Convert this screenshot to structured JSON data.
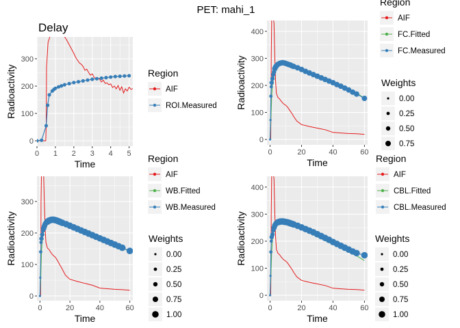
{
  "title": "PET:  mahi_1",
  "colors": {
    "aif": "#E41A1C",
    "fitted": "#4DAF4A",
    "measured": "#377EB8",
    "panel_bg": "#EBEBEB",
    "grid": "#ffffff",
    "legend_key_bg": "#F2F2F2"
  },
  "chart_data": [
    {
      "id": "delay",
      "type": "line",
      "title": "Delay",
      "xlabel": "Time",
      "ylabel": "Radioactivity",
      "xlim": [
        0,
        5.2
      ],
      "ylim": [
        -20,
        380
      ],
      "xticks": [
        0,
        1,
        2,
        3,
        4,
        5
      ],
      "yticks": [
        0,
        100,
        200,
        300
      ],
      "legend_title": "Region",
      "legend": [
        "AIF",
        "ROI.Measured"
      ],
      "weights": null,
      "series": [
        {
          "name": "AIF",
          "color": "aif",
          "kind": "line",
          "x": [
            0,
            0.48,
            0.5,
            0.52,
            0.6,
            0.7,
            0.72,
            1.4,
            1.6,
            1.8,
            2.0,
            2.1,
            2.2,
            2.3,
            2.4,
            2.5,
            2.6,
            2.7,
            2.8,
            2.9,
            3.0,
            3.1,
            3.2,
            3.3,
            3.4,
            3.5,
            3.6,
            3.7,
            3.8,
            3.9,
            4.0,
            4.1,
            4.2,
            4.3,
            4.4,
            4.5,
            4.6,
            4.7,
            4.8,
            4.9,
            5.0,
            5.1,
            5.2
          ],
          "y": [
            0,
            0,
            60,
            270,
            360,
            380,
            390,
            390,
            370,
            345,
            320,
            305,
            295,
            285,
            280,
            272,
            258,
            262,
            250,
            240,
            245,
            232,
            228,
            230,
            225,
            215,
            222,
            210,
            212,
            205,
            208,
            195,
            200,
            190,
            202,
            185,
            198,
            175,
            190,
            182,
            196,
            188,
            191
          ]
        },
        {
          "name": "ROI.Measured",
          "color": "measured",
          "kind": "points-line",
          "x": [
            0,
            0.25,
            0.5,
            0.58,
            0.67,
            0.83,
            0.92,
            1.0,
            1.17,
            1.33,
            1.5,
            1.75,
            2.0,
            2.25,
            2.5,
            2.75,
            3.0,
            3.25,
            3.5,
            3.75,
            4.0,
            4.25,
            4.5,
            4.75,
            5.0
          ],
          "y": [
            0,
            2,
            55,
            130,
            168,
            182,
            188,
            192,
            197,
            201,
            205,
            209,
            213,
            216,
            219,
            222,
            225,
            227,
            229,
            231,
            233,
            235,
            236,
            237,
            238
          ]
        }
      ]
    },
    {
      "id": "fc",
      "type": "line",
      "title": "",
      "xlabel": "Time",
      "ylabel": "Radioactivity",
      "xlim": [
        -2,
        62
      ],
      "ylim": [
        -20,
        440
      ],
      "xticks": [
        0,
        20,
        40,
        60
      ],
      "yticks": [
        0,
        100,
        200,
        300,
        400
      ],
      "legend_title": "Region",
      "legend": [
        "AIF",
        "FC.Fitted",
        "FC.Measured"
      ],
      "weights": {
        "title": "Weights",
        "values": [
          "0.00",
          "0.25",
          "0.50",
          "0.75"
        ]
      },
      "series": [
        {
          "name": "AIF",
          "color": "aif",
          "kind": "line",
          "x": [
            0,
            0.4,
            0.5,
            0.7,
            1,
            1.5,
            2,
            2.5,
            3,
            3.5,
            4,
            5,
            6,
            7,
            8,
            9,
            10,
            11,
            12,
            13,
            14,
            15,
            17,
            20,
            25,
            30,
            35,
            40,
            45,
            50,
            55,
            60
          ],
          "y": [
            0,
            0,
            60,
            300,
            450,
            450,
            450,
            430,
            300,
            215,
            170,
            155,
            150,
            142,
            135,
            130,
            126,
            120,
            112,
            103,
            95,
            85,
            68,
            55,
            48,
            42,
            36,
            26,
            24,
            22,
            21,
            19
          ]
        },
        {
          "name": "FC.Fitted",
          "color": "fitted",
          "kind": "line",
          "x": [
            0,
            0.5,
            1,
            1.5,
            2,
            3,
            4,
            5,
            6,
            7,
            8,
            10,
            12,
            15,
            20,
            25,
            30,
            35,
            40,
            45,
            50,
            55,
            60
          ],
          "y": [
            0,
            70,
            160,
            200,
            225,
            250,
            265,
            274,
            280,
            283,
            285,
            284,
            281,
            275,
            262,
            249,
            237,
            224,
            211,
            198,
            185,
            172,
            152
          ]
        },
        {
          "name": "FC.Measured",
          "color": "measured",
          "kind": "points-line",
          "x": [
            0,
            0.25,
            0.5,
            0.75,
            1,
            1.5,
            2,
            2.5,
            3,
            3.5,
            4,
            5,
            6,
            7,
            8,
            9,
            10,
            11,
            12,
            13,
            14,
            15,
            17.5,
            20,
            22.5,
            25,
            27.5,
            30,
            32.5,
            35,
            37.5,
            40,
            42.5,
            45,
            47.5,
            50,
            52.5,
            55,
            60
          ],
          "y": [
            0,
            72,
            160,
            195,
            210,
            225,
            240,
            250,
            262,
            268,
            272,
            278,
            281,
            283,
            284,
            283,
            281,
            279,
            277,
            275,
            272,
            270,
            265,
            259,
            252,
            246,
            240,
            234,
            228,
            222,
            216,
            210,
            203,
            197,
            190,
            183,
            175,
            168,
            152
          ],
          "w": [
            0,
            0,
            0.25,
            0.25,
            0.5,
            0.5,
            0.5,
            0.5,
            0.75,
            0.75,
            0.75,
            0.75,
            0.75,
            0.75,
            0.75,
            0.75,
            0.75,
            0.75,
            0.75,
            0.75,
            0.75,
            0.75,
            0.75,
            0.75,
            0.75,
            0.75,
            0.75,
            0.75,
            0.75,
            0.75,
            0.75,
            0.75,
            0.75,
            0.75,
            0.75,
            0.75,
            0.75,
            0.75,
            0.75
          ]
        }
      ]
    },
    {
      "id": "wb",
      "type": "line",
      "title": "",
      "xlabel": "Time",
      "ylabel": "Radioactivity",
      "xlim": [
        -2,
        62
      ],
      "ylim": [
        -15,
        380
      ],
      "xticks": [
        0,
        20,
        40,
        60
      ],
      "yticks": [
        0,
        100,
        200,
        300
      ],
      "legend_title": "Region",
      "legend": [
        "AIF",
        "WB.Fitted",
        "WB.Measured"
      ],
      "weights": {
        "title": "Weights",
        "values": [
          "0.00",
          "0.25",
          "0.50",
          "0.75",
          "1.00"
        ]
      },
      "series": [
        {
          "name": "AIF",
          "color": "aif",
          "kind": "line",
          "x": [
            0,
            0.4,
            0.5,
            0.7,
            1,
            2,
            2.5,
            3,
            3.5,
            4,
            5,
            6,
            7,
            8,
            9,
            10,
            11,
            12,
            13,
            14,
            15,
            17,
            20,
            25,
            30,
            35,
            40,
            45,
            50,
            55,
            60
          ],
          "y": [
            0,
            0,
            60,
            300,
            390,
            390,
            380,
            290,
            210,
            170,
            152,
            148,
            140,
            133,
            128,
            124,
            118,
            110,
            101,
            93,
            84,
            66,
            53,
            46,
            40,
            34,
            25,
            23,
            21,
            20,
            18
          ]
        },
        {
          "name": "WB.Fitted",
          "color": "fitted",
          "kind": "line",
          "x": [
            0,
            0.5,
            1,
            1.5,
            2,
            3,
            4,
            5,
            6,
            7,
            8,
            10,
            12,
            15,
            20,
            25,
            30,
            35,
            40,
            45,
            50,
            55,
            60
          ],
          "y": [
            0,
            55,
            140,
            175,
            195,
            215,
            228,
            235,
            240,
            242,
            243,
            242,
            240,
            235,
            225,
            214,
            204,
            194,
            184,
            174,
            164,
            154,
            140
          ]
        },
        {
          "name": "WB.Measured",
          "color": "measured",
          "kind": "points-line",
          "x": [
            0,
            0.25,
            0.5,
            0.75,
            1,
            1.5,
            2,
            2.5,
            3,
            3.5,
            4,
            5,
            6,
            7,
            8,
            9,
            10,
            11,
            12,
            13,
            14,
            15,
            17.5,
            20,
            22.5,
            25,
            27.5,
            30,
            32.5,
            35,
            37.5,
            40,
            42.5,
            45,
            47.5,
            50,
            52.5,
            55,
            60
          ],
          "y": [
            0,
            58,
            140,
            170,
            182,
            195,
            208,
            215,
            222,
            228,
            232,
            236,
            239,
            241,
            242,
            242,
            241,
            240,
            238,
            236,
            234,
            232,
            228,
            223,
            218,
            213,
            208,
            203,
            198,
            193,
            188,
            183,
            178,
            173,
            168,
            163,
            158,
            153,
            143
          ],
          "w": [
            0,
            0,
            0.25,
            0.25,
            0.5,
            0.5,
            0.5,
            0.75,
            0.75,
            0.75,
            0.75,
            1,
            1,
            1,
            1,
            1,
            1,
            1,
            1,
            1,
            1,
            1,
            1,
            1,
            1,
            1,
            1,
            1,
            1,
            1,
            1,
            1,
            1,
            1,
            1,
            1,
            1,
            1,
            1
          ]
        }
      ]
    },
    {
      "id": "cbl",
      "type": "line",
      "title": "",
      "xlabel": "Time",
      "ylabel": "Radioactivity",
      "xlim": [
        -2,
        62
      ],
      "ylim": [
        -20,
        440
      ],
      "xticks": [
        0,
        20,
        40,
        60
      ],
      "yticks": [
        0,
        100,
        200,
        300,
        400
      ],
      "legend_title": "Region",
      "legend": [
        "AIF",
        "CBL.Fitted",
        "CBL.Measured"
      ],
      "weights": {
        "title": "Weights",
        "values": [
          "0.00",
          "0.25",
          "0.50",
          "0.75",
          "1.00"
        ]
      },
      "series": [
        {
          "name": "AIF",
          "color": "aif",
          "kind": "line",
          "x": [
            0,
            0.4,
            0.5,
            0.7,
            1,
            2,
            2.5,
            3,
            3.5,
            4,
            5,
            6,
            7,
            8,
            9,
            10,
            11,
            12,
            13,
            14,
            15,
            17,
            20,
            25,
            30,
            35,
            40,
            45,
            50,
            55,
            60
          ],
          "y": [
            0,
            0,
            60,
            300,
            450,
            450,
            430,
            300,
            215,
            170,
            155,
            150,
            142,
            135,
            130,
            126,
            120,
            112,
            103,
            95,
            85,
            68,
            55,
            48,
            42,
            36,
            26,
            24,
            22,
            21,
            19
          ]
        },
        {
          "name": "CBL.Fitted",
          "color": "fitted",
          "kind": "line",
          "x": [
            0,
            0.5,
            1,
            1.5,
            2,
            3,
            4,
            5,
            6,
            7,
            8,
            10,
            12,
            15,
            20,
            25,
            30,
            35,
            40,
            45,
            50,
            55,
            60
          ],
          "y": [
            0,
            70,
            160,
            205,
            230,
            252,
            262,
            268,
            271,
            272,
            272,
            270,
            266,
            259,
            245,
            230,
            216,
            202,
            188,
            174,
            160,
            146,
            128
          ]
        },
        {
          "name": "CBL.Measured",
          "color": "measured",
          "kind": "points-line",
          "x": [
            0,
            0.25,
            0.5,
            0.75,
            1,
            1.5,
            2,
            2.5,
            3,
            3.5,
            4,
            5,
            6,
            7,
            8,
            9,
            10,
            11,
            12,
            13,
            14,
            15,
            17.5,
            20,
            22.5,
            25,
            27.5,
            30,
            32.5,
            35,
            37.5,
            40,
            42.5,
            45,
            47.5,
            50,
            52.5,
            55,
            60
          ],
          "y": [
            0,
            72,
            160,
            200,
            215,
            225,
            240,
            250,
            258,
            263,
            267,
            270,
            272,
            273,
            273,
            272,
            271,
            270,
            268,
            266,
            264,
            262,
            257,
            251,
            245,
            239,
            233,
            226,
            219,
            212,
            205,
            197,
            190,
            183,
            176,
            169,
            162,
            156,
            148
          ],
          "w": [
            0,
            0,
            0.25,
            0.25,
            0.5,
            0.5,
            0.5,
            0.75,
            0.75,
            0.75,
            0.75,
            1,
            1,
            1,
            1,
            1,
            1,
            1,
            1,
            1,
            1,
            1,
            1,
            1,
            1,
            1,
            1,
            1,
            1,
            1,
            1,
            1,
            1,
            1,
            1,
            1,
            1,
            1,
            1
          ]
        }
      ]
    }
  ]
}
